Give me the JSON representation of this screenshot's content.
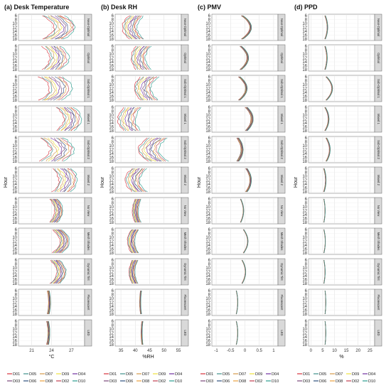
{
  "figure": {
    "y_axis_label": "Hour",
    "facets": [
      "Near-Optimal",
      "Optimal",
      "Sub-Optimal 1",
      "Mixed 1",
      "Sub-Optimal 2",
      "Mixed 2",
      "No View",
      "Mesh Shades",
      "Dynamic Tint",
      "Fluorescent",
      "LED"
    ],
    "hour_ticks": [
      6,
      8,
      10,
      12,
      14,
      16,
      18
    ]
  },
  "legend": {
    "row1": [
      "D01",
      "D05",
      "D07",
      "D09",
      "D04"
    ],
    "row2": [
      "D03",
      "D06",
      "D08",
      "D02",
      "D10"
    ]
  },
  "colors": {
    "D01": "#d7303a",
    "D05": "#3f8f8a",
    "D07": "#d59a4a",
    "D09": "#f0e13a",
    "D04": "#6f2fa0",
    "D03": "#7a4a7a",
    "D06": "#2f4f7f",
    "D08": "#e8a040",
    "D02": "#c04050",
    "D10": "#2a9d8f"
  },
  "chart_data": [
    {
      "type": "line",
      "title": "(a) Desk Temperature",
      "xlabel": "°C",
      "xlim": [
        19,
        29
      ],
      "x_ticks": [
        21,
        24,
        27
      ],
      "ylabel": "Hour",
      "ylim": [
        6,
        18
      ],
      "y_reversed": true,
      "facet_profiles": {
        "Near-Optimal": {
          "center": 24.2,
          "bulge": 1.8,
          "spread": 1.6
        },
        "Optimal": {
          "center": 24.0,
          "bulge": 1.2,
          "spread": 1.4
        },
        "Sub-Optimal 1": {
          "center": 23.8,
          "bulge": 1.6,
          "spread": 1.7
        },
        "Mixed 1": {
          "center": 26.0,
          "bulge": 1.2,
          "spread": 1.3
        },
        "Sub-Optimal 2": {
          "center": 24.0,
          "bulge": 1.6,
          "spread": 1.8
        },
        "Mixed 2": {
          "center": 25.5,
          "bulge": 1.0,
          "spread": 1.4
        },
        "No View": {
          "center": 24.3,
          "bulge": 0.8,
          "spread": 0.6
        },
        "Mesh Shades": {
          "center": 24.8,
          "bulge": 1.2,
          "spread": 0.7
        },
        "Dynamic Tint": {
          "center": 24.5,
          "bulge": 1.0,
          "spread": 0.7
        },
        "Fluorescent": {
          "center": 23.5,
          "bulge": 0.2,
          "spread": 0.15
        },
        "LED": {
          "center": 23.4,
          "bulge": 0.2,
          "spread": 0.15
        }
      }
    },
    {
      "type": "line",
      "title": "(b) Desk RH",
      "xlabel": "%RH",
      "xlim": [
        33,
        56
      ],
      "x_ticks": [
        35,
        40,
        45,
        50,
        55
      ],
      "ylabel": "Hour",
      "ylim": [
        6,
        18
      ],
      "y_reversed": true,
      "facet_profiles": {
        "Near-Optimal": {
          "center": 40.5,
          "bulge": -2.5,
          "spread": 2.5
        },
        "Optimal": {
          "center": 43.0,
          "bulge": -2.0,
          "spread": 2.5
        },
        "Sub-Optimal 1": {
          "center": 45.0,
          "bulge": -2.5,
          "spread": 3.0
        },
        "Mixed 1": {
          "center": 39.0,
          "bulge": -2.0,
          "spread": 3.0
        },
        "Sub-Optimal 2": {
          "center": 48.0,
          "bulge": -3.5,
          "spread": 3.5
        },
        "Mixed 2": {
          "center": 41.5,
          "bulge": -2.5,
          "spread": 2.5
        },
        "No View": {
          "center": 41.0,
          "bulge": -1.0,
          "spread": 1.0
        },
        "Mesh Shades": {
          "center": 40.0,
          "bulge": -1.5,
          "spread": 1.2
        },
        "Dynamic Tint": {
          "center": 40.0,
          "bulge": -1.2,
          "spread": 1.0
        },
        "Fluorescent": {
          "center": 42.0,
          "bulge": -0.3,
          "spread": 0.2
        },
        "LED": {
          "center": 42.5,
          "bulge": -0.3,
          "spread": 0.2
        }
      }
    },
    {
      "type": "line",
      "title": "(c) PMV",
      "xlabel": "",
      "xlim": [
        -1.15,
        1.15
      ],
      "x_ticks": [
        -1.0,
        -0.5,
        0.0,
        0.5,
        1.0
      ],
      "ylabel": "Hour",
      "ylim": [
        6,
        18
      ],
      "y_reversed": true,
      "facet_profiles": {
        "Near-Optimal": {
          "center": -0.1,
          "bulge": 0.3,
          "spread": 0.03
        },
        "Optimal": {
          "center": -0.15,
          "bulge": 0.25,
          "spread": 0.03
        },
        "Sub-Optimal 1": {
          "center": -0.2,
          "bulge": 0.25,
          "spread": 0.03
        },
        "Mixed 1": {
          "center": 0.05,
          "bulge": 0.2,
          "spread": 0.04
        },
        "Sub-Optimal 2": {
          "center": -0.25,
          "bulge": 0.15,
          "spread": 0.04
        },
        "Mixed 2": {
          "center": 0.05,
          "bulge": 0.15,
          "spread": 0.03
        },
        "No View": {
          "center": -0.15,
          "bulge": 0.1,
          "spread": 0.01
        },
        "Mesh Shades": {
          "center": -0.05,
          "bulge": 0.15,
          "spread": 0.01
        },
        "Dynamic Tint": {
          "center": -0.1,
          "bulge": 0.12,
          "spread": 0.01
        },
        "Fluorescent": {
          "center": -0.3,
          "bulge": 0.05,
          "spread": 0.005
        },
        "LED": {
          "center": -0.3,
          "bulge": 0.05,
          "spread": 0.005
        }
      }
    },
    {
      "type": "line",
      "title": "(d) PPD",
      "xlabel": "%",
      "xlim": [
        -1,
        27
      ],
      "x_ticks": [
        0,
        5,
        10,
        15,
        20,
        25
      ],
      "ylabel": "Hour",
      "ylim": [
        6,
        18
      ],
      "y_reversed": true,
      "facet_profiles": {
        "Near-Optimal": {
          "center": 6.0,
          "bulge": 1.0,
          "spread": 0.15
        },
        "Optimal": {
          "center": 6.0,
          "bulge": 0.8,
          "spread": 0.15
        },
        "Sub-Optimal 1": {
          "center": 6.5,
          "bulge": 2.5,
          "spread": 0.2
        },
        "Mixed 1": {
          "center": 6.0,
          "bulge": 1.5,
          "spread": 0.2
        },
        "Sub-Optimal 2": {
          "center": 6.5,
          "bulge": 1.5,
          "spread": 0.2
        },
        "Mixed 2": {
          "center": 5.5,
          "bulge": 0.8,
          "spread": 0.15
        },
        "No View": {
          "center": 5.5,
          "bulge": 0.5,
          "spread": 0.05
        },
        "Mesh Shades": {
          "center": 5.5,
          "bulge": 0.6,
          "spread": 0.05
        },
        "Dynamic Tint": {
          "center": 5.5,
          "bulge": 0.5,
          "spread": 0.05
        },
        "Fluorescent": {
          "center": 6.0,
          "bulge": 0.3,
          "spread": 0.03
        },
        "LED": {
          "center": 6.0,
          "bulge": 0.3,
          "spread": 0.03
        }
      }
    }
  ]
}
